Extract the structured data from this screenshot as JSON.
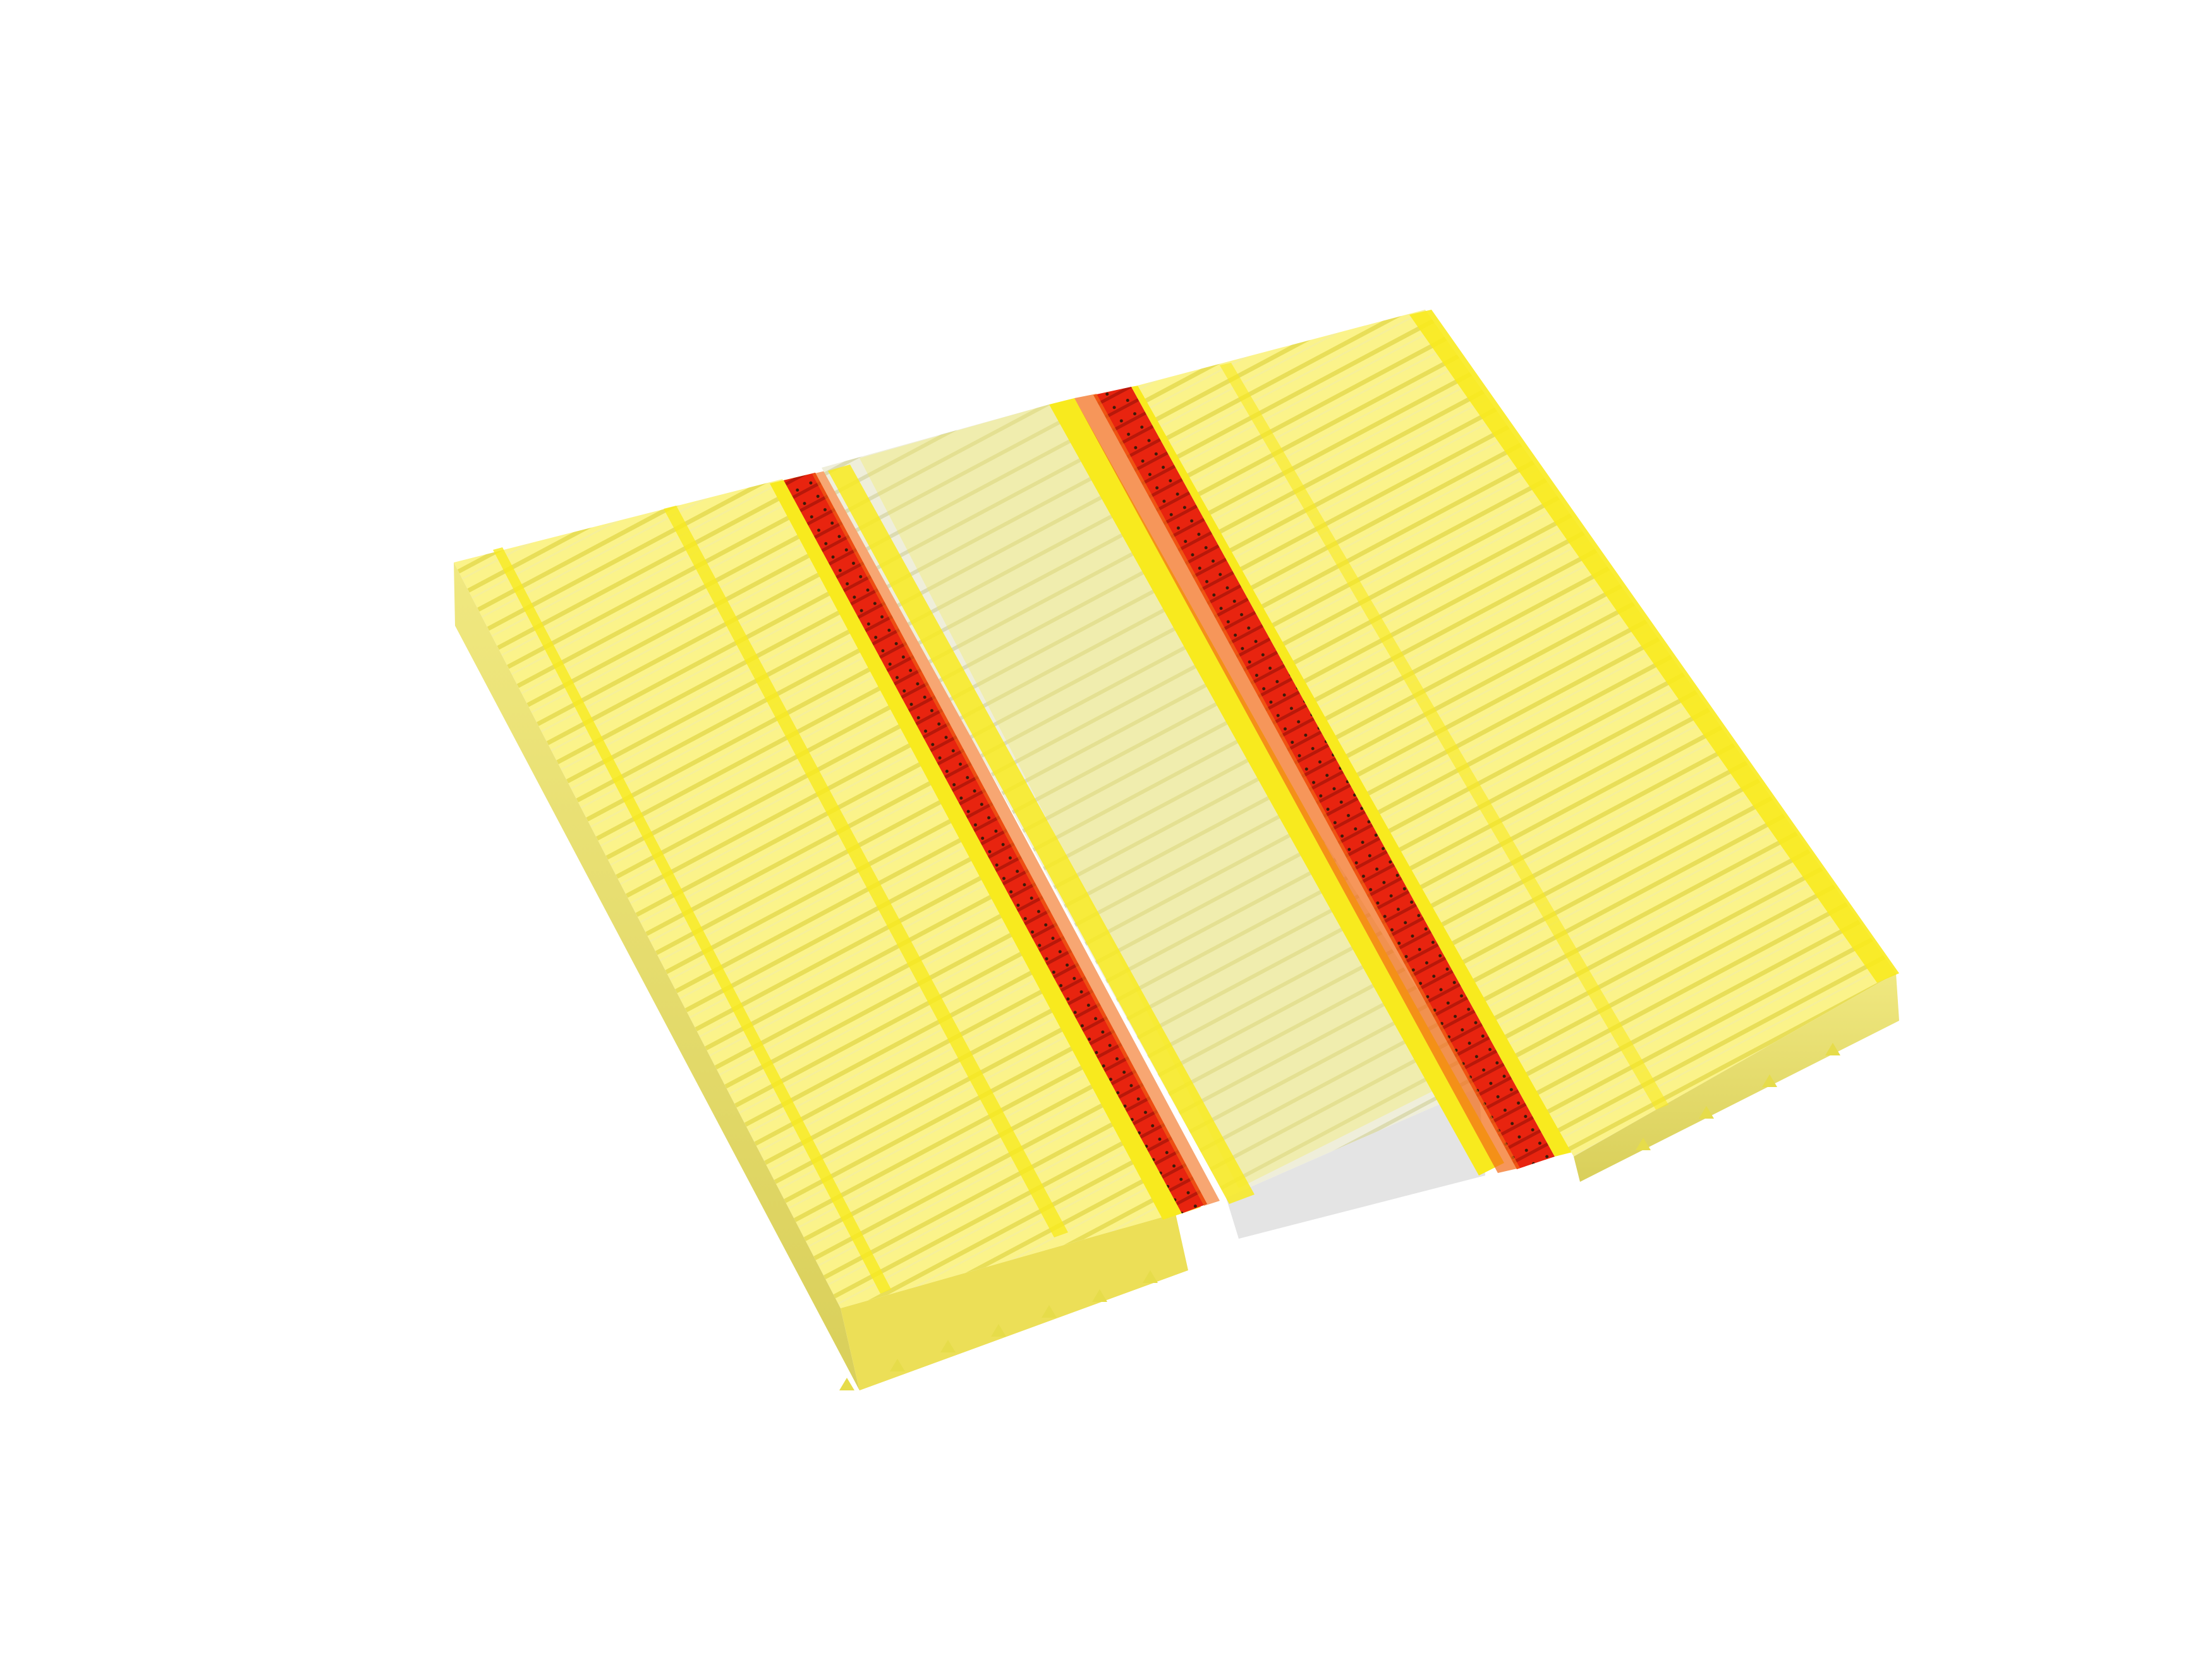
{
  "scene": {
    "description_tag": "spin-texture-render",
    "colors": {
      "background": "#ffffff",
      "yellow_light": "#fbf38a",
      "yellow_mid": "#f4ea5c",
      "yellow_bright": "#f8ea1e",
      "yellow_shade": "#d9cf5a",
      "pale": "#ecebd2",
      "white_grey": "#e4e4e4",
      "red": "#e8240f",
      "orange_red": "#f26a14",
      "dark": "#3a1a08"
    },
    "stripes": [
      {
        "name": "left-yellow-domain",
        "color_key": "yellow_light"
      },
      {
        "name": "left-domain-wall-red",
        "color_key": "red"
      },
      {
        "name": "center-pale-domain",
        "color_key": "pale"
      },
      {
        "name": "right-domain-wall-red",
        "color_key": "red"
      },
      {
        "name": "right-yellow-domain",
        "color_key": "yellow_light"
      }
    ]
  }
}
